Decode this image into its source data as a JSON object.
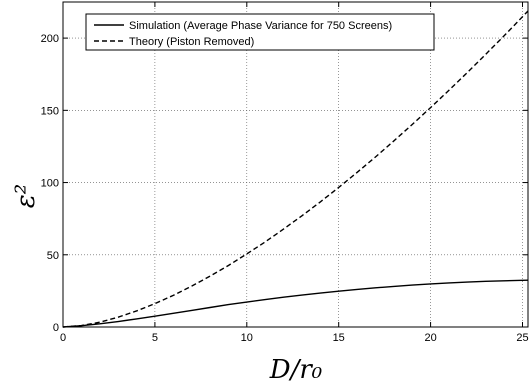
{
  "chart_data": {
    "type": "line",
    "xlabel": "D/r₀",
    "ylabel": "ε²",
    "xlim": [
      0,
      25.3
    ],
    "ylim": [
      0,
      225
    ],
    "xticks": [
      0,
      5,
      10,
      15,
      20,
      25
    ],
    "yticks": [
      0,
      50,
      100,
      150,
      200
    ],
    "grid": true,
    "legend_position": "top-left",
    "series": [
      {
        "name": "Simulation (Average Phase Variance for 750 Screens)",
        "style": "solid",
        "color": "#000000",
        "x": [
          0,
          1,
          2,
          3,
          4,
          5,
          6,
          7,
          8,
          9,
          10,
          11,
          12,
          13,
          14,
          15,
          16,
          17,
          18,
          19,
          20,
          21,
          22,
          23,
          24,
          25,
          25.3
        ],
        "y": [
          0,
          0.9,
          2.2,
          3.8,
          5.6,
          7.5,
          9.5,
          11.5,
          13.5,
          15.5,
          17.3,
          19.0,
          20.6,
          22.1,
          23.5,
          24.8,
          26.0,
          27.1,
          28.1,
          29.0,
          29.8,
          30.5,
          31.1,
          31.6,
          32.0,
          32.3,
          32.4
        ]
      },
      {
        "name": "Theory (Piston Removed)",
        "style": "dashed",
        "color": "#000000",
        "x": [
          0,
          1,
          2,
          3,
          4,
          5,
          6,
          7,
          8,
          9,
          10,
          11,
          12,
          13,
          14,
          15,
          16,
          17,
          18,
          19,
          20,
          21,
          22,
          23,
          24,
          25,
          25.3
        ],
        "y": [
          0,
          1.0,
          3.3,
          6.8,
          11.1,
          16.2,
          21.9,
          28.3,
          35.2,
          42.6,
          50.6,
          58.9,
          67.8,
          77.0,
          86.6,
          96.6,
          107.0,
          117.7,
          128.8,
          140.2,
          151.9,
          163.9,
          176.2,
          188.8,
          201.6,
          214.8,
          218.8
        ]
      }
    ]
  }
}
